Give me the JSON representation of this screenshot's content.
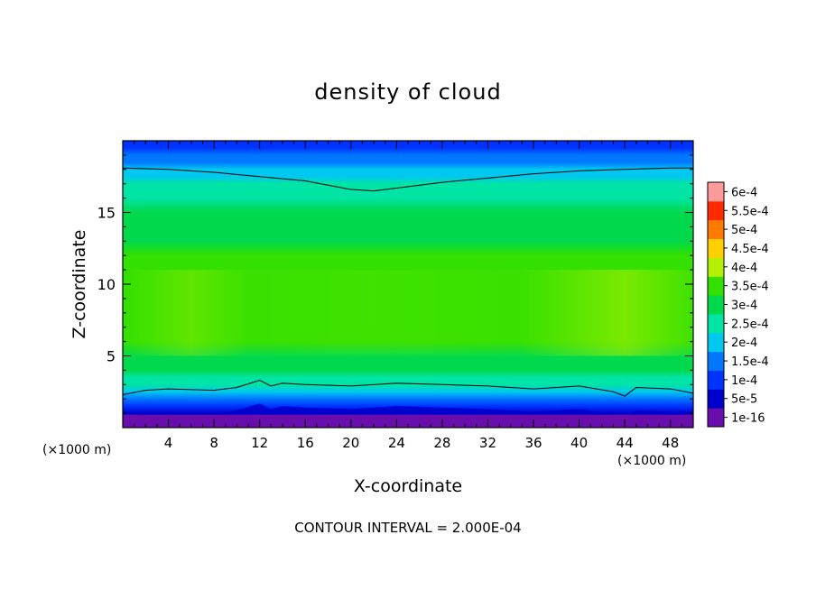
{
  "chart_data": {
    "type": "heatmap",
    "title": "density of cloud",
    "xlabel": "X-coordinate",
    "ylabel": "Z-coordinate",
    "x_unit_left": "(×1000 m)",
    "x_unit_right": "(×1000 m)",
    "note": "CONTOUR INTERVAL = 2.000E-04",
    "xlim": [
      0,
      50
    ],
    "ylim": [
      0,
      20
    ],
    "x_ticks": [
      "4",
      "8",
      "12",
      "16",
      "20",
      "24",
      "28",
      "32",
      "36",
      "40",
      "44",
      "48"
    ],
    "y_ticks": [
      "5",
      "10",
      "15"
    ],
    "colorbar": {
      "labels": [
        "1e-16",
        "5e-5",
        "1e-4",
        "1.5e-4",
        "2e-4",
        "2.5e-4",
        "3e-4",
        "3.5e-4",
        "4e-4",
        "4.5e-4",
        "5e-4",
        "5.5e-4",
        "6e-4"
      ],
      "colors": [
        "#6a0dad",
        "#0000cc",
        "#0033ff",
        "#0077ff",
        "#00c8ee",
        "#00e4a6",
        "#00d94c",
        "#33e000",
        "#b4f000",
        "#ffd000",
        "#ff7a00",
        "#ff2a00",
        "#ff9a9a"
      ]
    },
    "contour_lines": [
      {
        "level": "2.000E-04 (upper)",
        "x": [
          0,
          4,
          8,
          12,
          16,
          18,
          20,
          22,
          24,
          28,
          32,
          36,
          40,
          44,
          48,
          50
        ],
        "y": [
          18.1,
          18.0,
          17.8,
          17.5,
          17.2,
          16.9,
          16.6,
          16.5,
          16.7,
          17.1,
          17.4,
          17.7,
          17.9,
          18.0,
          18.1,
          18.1
        ]
      },
      {
        "level": "2.000E-04 (lower)",
        "x": [
          0,
          2,
          4,
          8,
          10,
          12,
          13,
          14,
          16,
          20,
          24,
          28,
          32,
          36,
          40,
          43,
          44,
          45,
          48,
          50
        ],
        "y": [
          2.3,
          2.6,
          2.7,
          2.6,
          2.8,
          3.3,
          2.9,
          3.1,
          3.0,
          2.9,
          3.1,
          3.0,
          2.9,
          2.7,
          2.9,
          2.5,
          2.2,
          2.8,
          2.7,
          2.4
        ]
      }
    ],
    "vertical_profile": {
      "z": [
        0,
        0.5,
        1,
        1.5,
        2,
        2.5,
        3,
        3.5,
        4,
        5,
        6,
        7,
        8,
        9,
        10,
        11,
        12,
        13,
        14,
        15,
        16,
        17,
        17.5,
        18,
        18.5,
        19,
        19.5,
        20
      ],
      "value": [
        0.0,
        2e-05,
        5e-05,
        0.0001,
        0.00015,
        0.0002,
        0.00024,
        0.00027,
        0.0003,
        0.00032,
        0.00034,
        0.00035,
        0.00036,
        0.00036,
        0.00035,
        0.00034,
        0.00033,
        0.00031,
        0.00029,
        0.00028,
        0.00026,
        0.00023,
        0.00021,
        0.00019,
        0.00016,
        0.00013,
        0.0001,
        8e-05
      ]
    },
    "grid": false,
    "legend": "right colorbar"
  }
}
